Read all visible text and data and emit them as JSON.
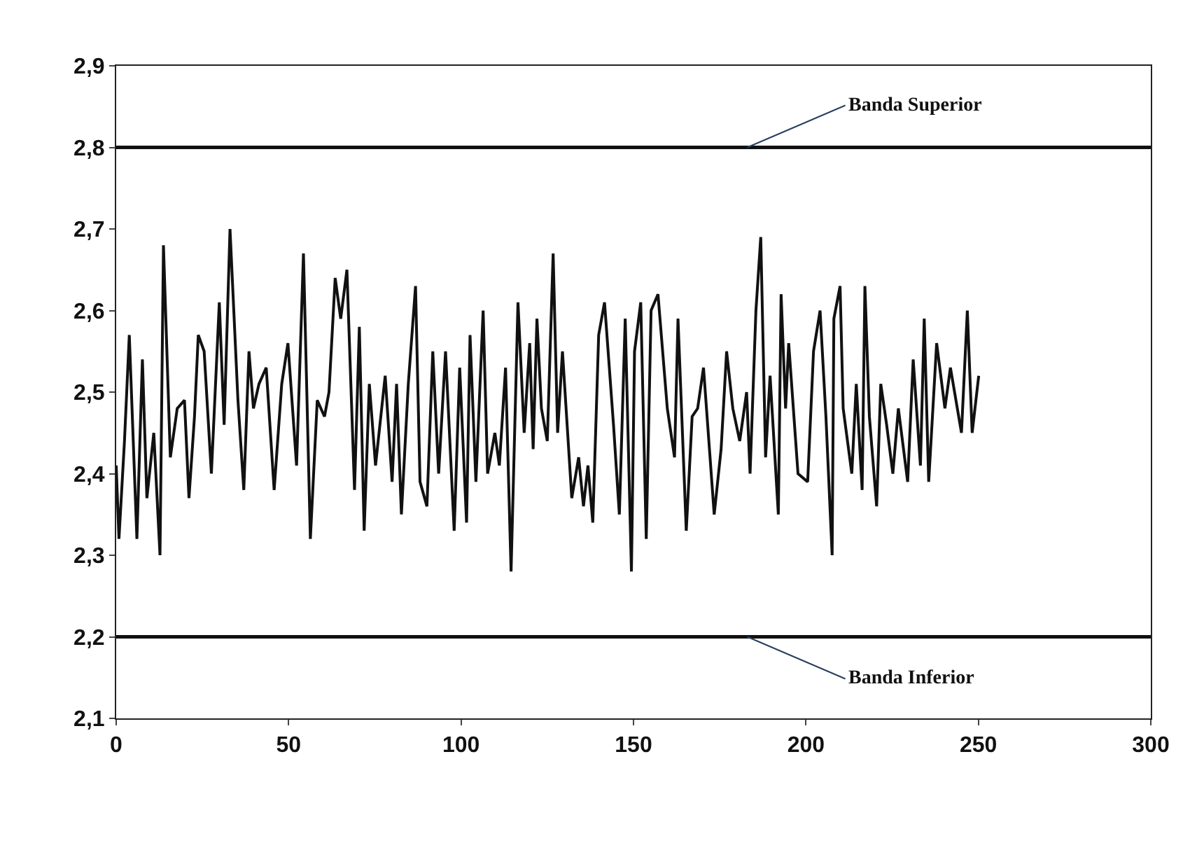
{
  "chart_data": {
    "type": "line",
    "x": [
      0,
      0.8,
      2.4,
      3.8,
      6.0,
      7.6,
      8.9,
      10.9,
      12.7,
      13.7,
      15.7,
      17.7,
      19.8,
      21.1,
      22.7,
      23.8,
      25.5,
      27.6,
      29.9,
      31.3,
      33.0,
      35.3,
      37.0,
      38.5,
      39.8,
      41.4,
      43.5,
      45.8,
      48.0,
      49.8,
      52.3,
      54.3,
      56.3,
      58.3,
      60.4,
      61.7,
      63.5,
      65.1,
      66.9,
      69.1,
      70.5,
      71.9,
      73.4,
      75.2,
      78.0,
      80.0,
      81.3,
      82.7,
      84.7,
      86.8,
      88.1,
      90.1,
      91.8,
      93.5,
      95.5,
      98.0,
      99.6,
      101.6,
      102.6,
      104.3,
      106.4,
      107.7,
      109.8,
      111.1,
      112.9,
      114.5,
      116.5,
      118.3,
      119.9,
      120.9,
      122.0,
      123.3,
      125.0,
      126.7,
      128.0,
      129.4,
      132.1,
      134.1,
      135.5,
      136.8,
      138.2,
      139.9,
      141.6,
      144.2,
      145.9,
      147.6,
      149.4,
      150.3,
      152.1,
      153.7,
      155.1,
      157.1,
      159.8,
      161.9,
      162.9,
      165.3,
      167.0,
      168.6,
      170.3,
      173.4,
      175.4,
      177.0,
      178.8,
      180.8,
      182.8,
      183.8,
      185.5,
      186.9,
      188.3,
      189.6,
      192.0,
      192.8,
      194.1,
      195.0,
      197.7,
      200.5,
      202.2,
      204.1,
      205.8,
      207.6,
      208.1,
      209.9,
      210.8,
      213.3,
      214.6,
      216.3,
      217.1,
      218.4,
      220.5,
      221.7,
      223.4,
      225.2,
      226.8,
      229.5,
      231.1,
      233.2,
      234.3,
      235.6,
      237.9,
      240.3,
      241.9,
      245.1,
      246.8,
      248.2,
      250.1
    ],
    "series": [
      {
        "color": "#111111",
        "values": [
          2.41,
          2.32,
          2.44,
          2.57,
          2.32,
          2.54,
          2.37,
          2.45,
          2.3,
          2.68,
          2.42,
          2.48,
          2.49,
          2.37,
          2.47,
          2.57,
          2.55,
          2.4,
          2.61,
          2.46,
          2.7,
          2.49,
          2.38,
          2.55,
          2.48,
          2.51,
          2.53,
          2.38,
          2.51,
          2.56,
          2.41,
          2.67,
          2.32,
          2.49,
          2.47,
          2.5,
          2.64,
          2.59,
          2.65,
          2.38,
          2.58,
          2.33,
          2.51,
          2.41,
          2.52,
          2.39,
          2.51,
          2.35,
          2.51,
          2.63,
          2.39,
          2.36,
          2.55,
          2.4,
          2.55,
          2.33,
          2.53,
          2.34,
          2.57,
          2.39,
          2.6,
          2.4,
          2.45,
          2.41,
          2.53,
          2.28,
          2.61,
          2.45,
          2.56,
          2.43,
          2.59,
          2.48,
          2.44,
          2.67,
          2.45,
          2.55,
          2.37,
          2.42,
          2.36,
          2.41,
          2.34,
          2.57,
          2.61,
          2.46,
          2.35,
          2.59,
          2.28,
          2.55,
          2.61,
          2.32,
          2.6,
          2.62,
          2.48,
          2.42,
          2.59,
          2.33,
          2.47,
          2.48,
          2.53,
          2.35,
          2.43,
          2.55,
          2.48,
          2.44,
          2.5,
          2.4,
          2.6,
          2.69,
          2.42,
          2.52,
          2.35,
          2.62,
          2.48,
          2.56,
          2.4,
          2.39,
          2.55,
          2.6,
          2.47,
          2.3,
          2.59,
          2.63,
          2.48,
          2.4,
          2.51,
          2.38,
          2.63,
          2.47,
          2.36,
          2.51,
          2.46,
          2.4,
          2.48,
          2.39,
          2.54,
          2.41,
          2.59,
          2.39,
          2.56,
          2.48,
          2.53,
          2.45,
          2.6,
          2.45,
          2.52
        ]
      }
    ],
    "xlim": [
      0,
      300
    ],
    "xticks": [
      0,
      50,
      100,
      150,
      200,
      250,
      300
    ],
    "ylim": [
      2.1,
      2.9
    ],
    "yticks": [
      {
        "value": 2.1,
        "label": "2,1"
      },
      {
        "value": 2.2,
        "label": "2,2"
      },
      {
        "value": 2.3,
        "label": "2,3"
      },
      {
        "value": 2.4,
        "label": "2,4"
      },
      {
        "value": 2.5,
        "label": "2,5"
      },
      {
        "value": 2.6,
        "label": "2,6"
      },
      {
        "value": 2.7,
        "label": "2,7"
      },
      {
        "value": 2.8,
        "label": "2,8"
      },
      {
        "value": 2.9,
        "label": "2,9"
      }
    ],
    "ref_lines": [
      {
        "axis": "y",
        "value": 2.8,
        "label": "Banda Superior",
        "color": "#111111"
      },
      {
        "axis": "y",
        "value": 2.2,
        "label": "Banda Inferior",
        "color": "#111111"
      }
    ],
    "marker": "none",
    "line_style": "solid"
  }
}
